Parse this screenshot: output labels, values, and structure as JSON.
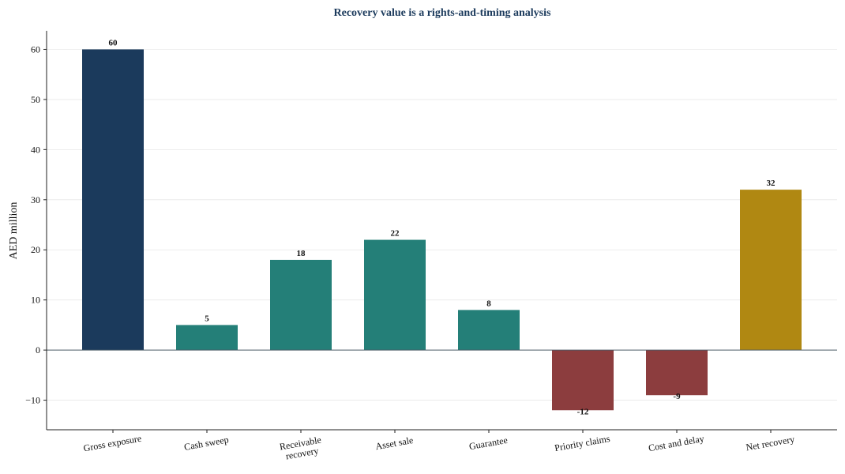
{
  "chart_data": {
    "type": "bar",
    "title": "Recovery value is a rights-and-timing analysis",
    "xlabel": "",
    "ylabel": "AED million",
    "ylim": [
      -15.9,
      63.7
    ],
    "yticks": [
      -10,
      0,
      10,
      20,
      30,
      40,
      50,
      60
    ],
    "categories": [
      "Gross exposure",
      "Cash sweep",
      "Receivable recovery",
      "Asset sale",
      "Guarantee",
      "Priority claims",
      "Cost and delay",
      "Net recovery"
    ],
    "category_label_lines": [
      [
        "Gross exposure"
      ],
      [
        "Cash sweep"
      ],
      [
        "Receivable",
        "recovery"
      ],
      [
        "Asset sale"
      ],
      [
        "Guarantee"
      ],
      [
        "Priority claims"
      ],
      [
        "Cost and delay"
      ],
      [
        "Net recovery"
      ]
    ],
    "values": [
      60,
      5,
      18,
      22,
      8,
      -12,
      -9,
      32
    ],
    "data_labels": [
      "60",
      "5",
      "18",
      "22",
      "8",
      "-12",
      "-9",
      "32"
    ],
    "colors": [
      "#1b3a5c",
      "#247f78",
      "#247f78",
      "#247f78",
      "#247f78",
      "#8c3d3e",
      "#8c3d3e",
      "#b08812"
    ],
    "grid": true,
    "legend": "none"
  }
}
